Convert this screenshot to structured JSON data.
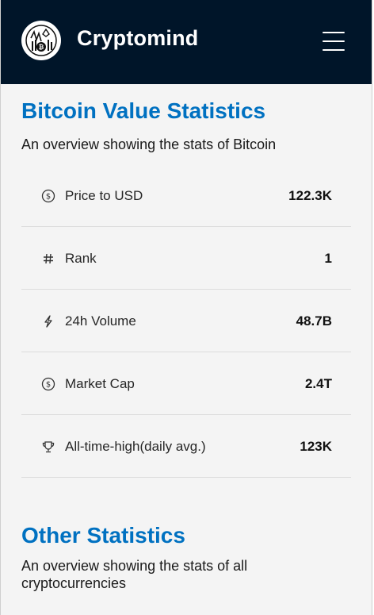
{
  "navbar": {
    "brand": "Cryptomind",
    "logo_icon": "crypto-logo-icon",
    "menu_icon": "hamburger-menu-icon",
    "background": "#001529"
  },
  "bitcoin_section": {
    "title": "Bitcoin Value Statistics",
    "description": "An overview showing the stats of Bitcoin",
    "stats": [
      {
        "icon": "dollar-circle-icon",
        "label": "Price to USD",
        "value": "122.3K"
      },
      {
        "icon": "hash-icon",
        "label": "Rank",
        "value": "1"
      },
      {
        "icon": "lightning-icon",
        "label": "24h Volume",
        "value": "48.7B"
      },
      {
        "icon": "dollar-circle-icon",
        "label": "Market Cap",
        "value": "2.4T"
      },
      {
        "icon": "trophy-icon",
        "label": "All-time-high(daily avg.)",
        "value": "123K"
      }
    ]
  },
  "other_section": {
    "title": "Other Statistics",
    "description": "An overview showing the stats of all cryptocurrencies"
  },
  "colors": {
    "accent": "#0071c1",
    "page_background": "#f4f4f4"
  }
}
